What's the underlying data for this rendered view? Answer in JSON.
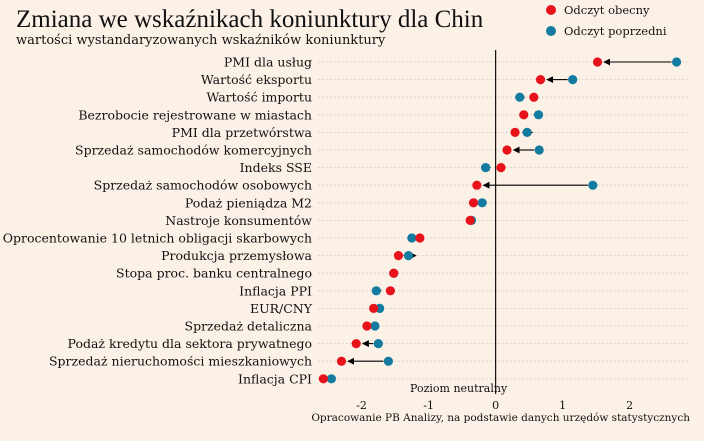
{
  "chart_data": {
    "type": "dumbbell",
    "title": "Zmiana we wskaźnikach koniunktury dla Chin",
    "subtitle": "wartości wystandaryzowanych wskaźników koniunktury",
    "legend": [
      {
        "name": "Odczyt obecny",
        "color": "#e8121b"
      },
      {
        "name": "Odczyt poprzedni",
        "color": "#137aa0"
      }
    ],
    "x_ticks": [
      -2,
      -1,
      0,
      1,
      2
    ],
    "xlim": [
      -2.65,
      2.9
    ],
    "neutral_label": "Poziom neutralny",
    "source": "Opracowanie PB Analizy, na podstawie danych urzędów statystycznych",
    "categories": [
      "PMI dla usług",
      "Wartość eksportu",
      "Wartość importu",
      "Bezrobocie rejestrowane w miastach",
      "PMI dla przetwórstwa",
      "Sprzedaż samochodów komercyjnych",
      "Indeks SSE",
      "Sprzedaż samochodów osobowych",
      "Podaż pieniądza M2",
      "Nastroje konsumentów",
      "Oprocentowanie 10 letnich obligacji skarbowych",
      "Produkcja przemysłowa",
      "Stopa proc. banku centralnego",
      "Inflacja PPI",
      "EUR/CNY",
      "Sprzedaż detaliczna",
      "Podaż kredytu dla sektora prywatnego",
      "Sprzedaż nieruchomości mieszkaniowych",
      "Inflacja CPI"
    ],
    "series": [
      {
        "name": "Odczyt obecny",
        "values": [
          1.52,
          0.67,
          0.57,
          0.42,
          0.29,
          0.17,
          0.08,
          -0.28,
          -0.33,
          -0.38,
          -1.13,
          -1.45,
          -1.52,
          -1.57,
          -1.82,
          -1.92,
          -2.08,
          -2.3,
          -2.57
        ]
      },
      {
        "name": "Odczyt poprzedni",
        "values": [
          2.7,
          1.15,
          0.36,
          0.64,
          0.47,
          0.65,
          -0.15,
          1.45,
          -0.2,
          -0.36,
          -1.25,
          -1.3,
          -1.52,
          -1.78,
          -1.73,
          -1.8,
          -1.75,
          -1.6,
          -2.45
        ]
      }
    ]
  }
}
